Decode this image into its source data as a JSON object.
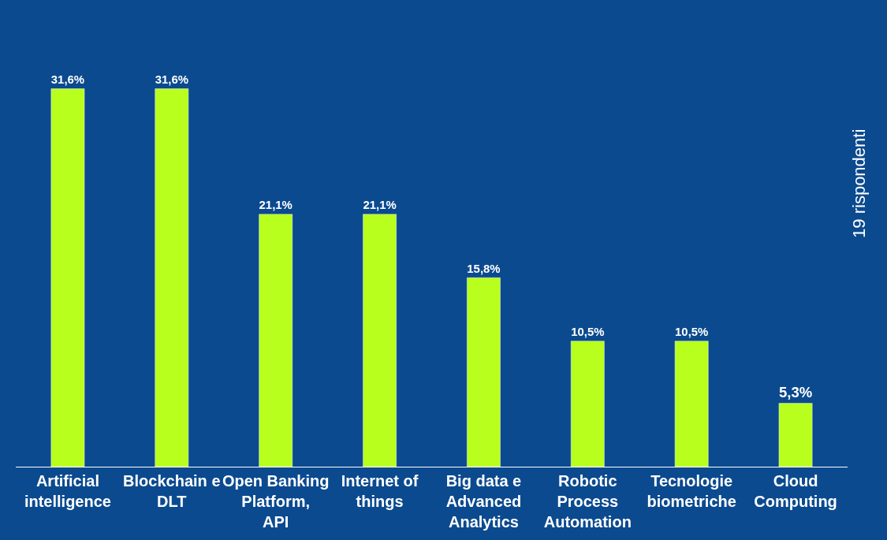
{
  "chart_data": {
    "type": "bar",
    "categories": [
      "Artificial intelligence",
      "Blockchain e DLT",
      "Open Banking Platform, API",
      "Internet of things",
      "Big data e Advanced Analytics",
      "Robotic Process Automation",
      "Tecnologie biometriche",
      "Cloud Computing"
    ],
    "values": [
      31.6,
      31.6,
      21.1,
      21.1,
      15.8,
      10.5,
      10.5,
      5.3
    ],
    "value_labels": [
      "31,6%",
      "31,6%",
      "21,1%",
      "21,1%",
      "15,8%",
      "10,5%",
      "10,5%",
      "5,3%"
    ],
    "color": "#b9ff1e",
    "annotations": [
      "19 rispondenti"
    ],
    "grid": false,
    "legend": false
  }
}
